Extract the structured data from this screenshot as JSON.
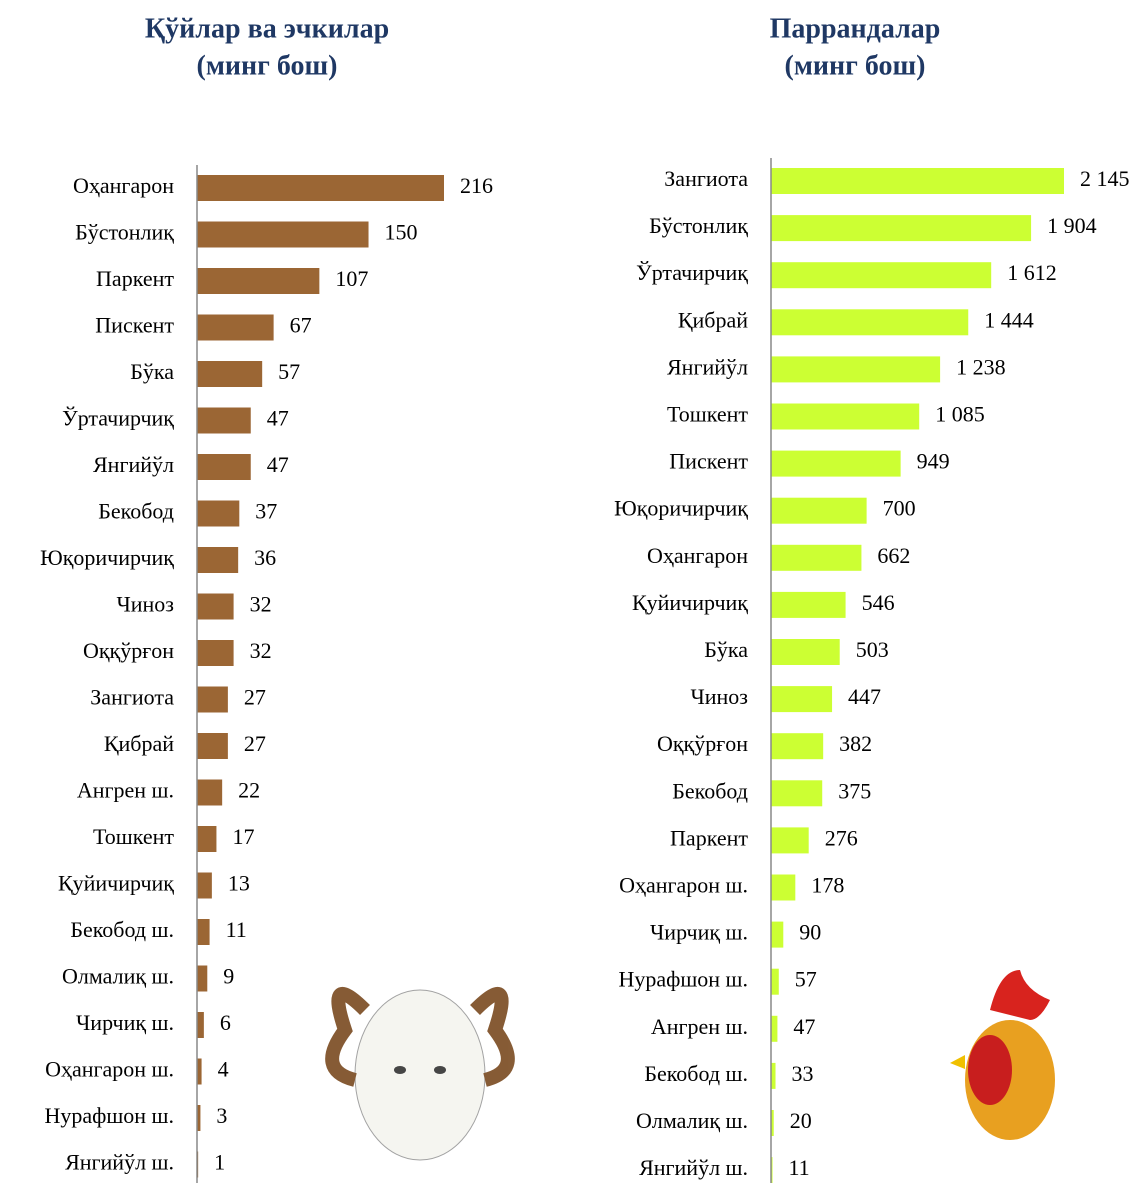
{
  "chart_data": [
    {
      "type": "bar",
      "orientation": "horizontal",
      "title": "Қўйлар ва эчкилар",
      "subtitle": "(минг бош)",
      "color": "#9b6634",
      "categories": [
        "Оҳангарон",
        "Бўстонлиқ",
        "Паркент",
        "Пискент",
        "Бўка",
        "Ўртачирчиқ",
        "Янгийўл",
        "Бекобод",
        "Юқоричирчиқ",
        "Чиноз",
        "Оққўрғон",
        "Зангиота",
        "Қибрай",
        "Ангрен ш.",
        "Тошкент",
        "Қуйичирчиқ",
        "Бекобод ш.",
        "Олмалиқ ш.",
        "Чирчиқ ш.",
        "Оҳангарон ш.",
        "Нурафшон ш.",
        "Янгийўл ш."
      ],
      "values": [
        216,
        150,
        107,
        67,
        57,
        47,
        47,
        37,
        36,
        32,
        32,
        27,
        27,
        22,
        17,
        13,
        11,
        9,
        6,
        4,
        3,
        1
      ]
    },
    {
      "type": "bar",
      "orientation": "horizontal",
      "title": "Паррандалар",
      "subtitle": "(минг бош)",
      "color": "#ccff33",
      "categories": [
        "Зангиота",
        "Бўстонлиқ",
        "Ўртачирчиқ",
        "Қибрай",
        "Янгийўл",
        "Тошкент",
        "Пискент",
        "Юқоричирчиқ",
        "Оҳангарон",
        "Қуйичирчиқ",
        "Бўка",
        "Чиноз",
        "Оққўрғон",
        "Бекобод",
        "Паркент",
        "Оҳангарон ш.",
        "Чирчиқ ш.",
        "Нурафшон ш.",
        "Ангрен ш.",
        "Бекобод ш.",
        "Олмалиқ ш.",
        "Янгийўл ш."
      ],
      "values": [
        2145,
        1904,
        1612,
        1444,
        1238,
        1085,
        949,
        700,
        662,
        546,
        503,
        447,
        382,
        375,
        276,
        178,
        90,
        57,
        47,
        33,
        20,
        11
      ],
      "value_labels": [
        "2 145",
        "1 904",
        "1 612",
        "1 444",
        "1 238",
        "1 085",
        "949",
        "700",
        "662",
        "546",
        "503",
        "447",
        "382",
        "375",
        "276",
        "178",
        "90",
        "57",
        "47",
        "33",
        "20",
        "11"
      ]
    }
  ]
}
